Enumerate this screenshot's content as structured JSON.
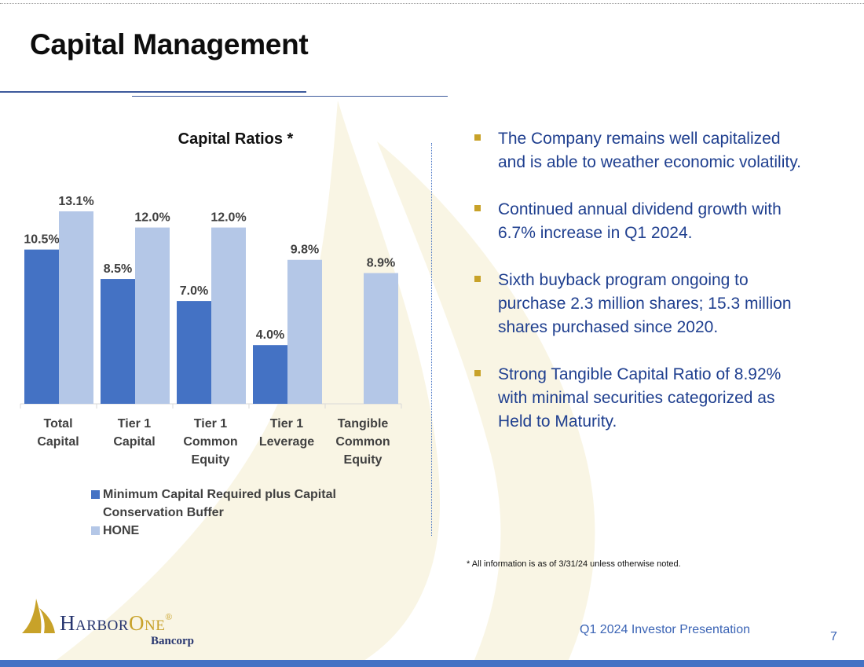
{
  "page": {
    "title": "Capital Management",
    "footer": "Q1 2024 Investor Presentation",
    "page_number": "7",
    "footnote": "* All information is as of 3/31/24 unless otherwise noted."
  },
  "logo": {
    "name_part1": "Harbor",
    "name_part2": "One",
    "registered": "®",
    "sub": "Bancorp"
  },
  "colors": {
    "minimum": "#4472c4",
    "hone": "#b4c7e7",
    "accent": "#c8a229",
    "text_blue": "#1f3f8f"
  },
  "bullets": [
    "The Company remains well capitalized and is able to weather economic volatility.",
    "Continued annual dividend growth with 6.7% increase in Q1 2024.",
    "Sixth buyback program ongoing to purchase 2.3 million shares; 15.3 million shares purchased since 2020.",
    "Strong Tangible Capital Ratio of 8.92% with minimal securities categorized as Held to Maturity."
  ],
  "chart_data": {
    "type": "bar",
    "title": "Capital Ratios *",
    "categories": [
      [
        "Total",
        "Capital"
      ],
      [
        "Tier 1",
        "Capital"
      ],
      [
        "Tier 1",
        "Common",
        "Equity"
      ],
      [
        "Tier 1",
        "Leverage"
      ],
      [
        "Tangible",
        "Common",
        "Equity"
      ]
    ],
    "series": [
      {
        "name": "Minimum Capital Required plus Capital Conservation Buffer",
        "values": [
          10.5,
          8.5,
          7.0,
          4.0,
          null
        ],
        "labels": [
          "10.5%",
          "8.5%",
          "7.0%",
          "4.0%",
          ""
        ]
      },
      {
        "name": "HONE",
        "values": [
          13.1,
          12.0,
          12.0,
          9.8,
          8.9
        ],
        "labels": [
          "13.1%",
          "12.0%",
          "12.0%",
          "9.8%",
          "8.9%"
        ]
      }
    ],
    "ylim": [
      0,
      14
    ],
    "xlabel": "",
    "ylabel": "",
    "legend": "bottom-left"
  }
}
